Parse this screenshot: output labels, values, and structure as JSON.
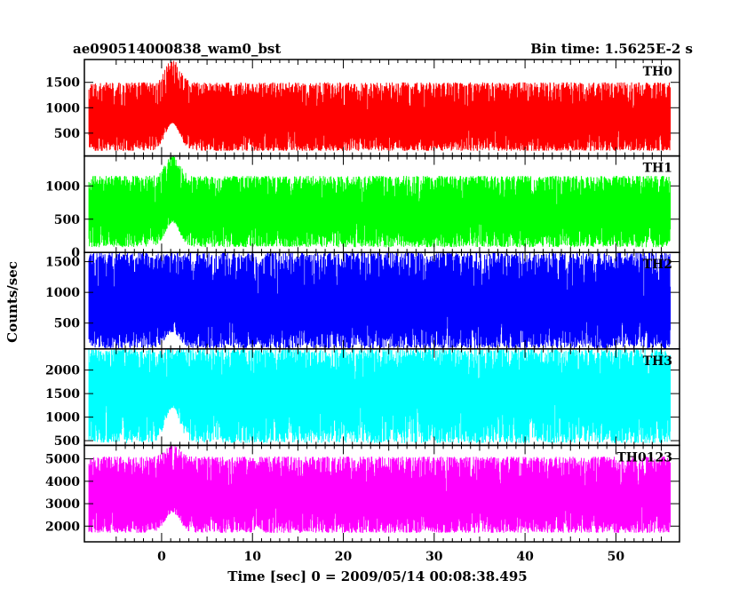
{
  "header": {
    "title": "ae090514000838_wam0_bst",
    "bin_time": "Bin time: 1.5625E-2 s"
  },
  "chart_data": {
    "type": "line",
    "xlabel": "Time [sec] 0 = 2009/05/14 00:08:38.495",
    "ylabel": "Counts/sec",
    "xlim": [
      -8.5,
      57
    ],
    "x_ticks": [
      0,
      10,
      20,
      30,
      40,
      50
    ],
    "x_range": [
      -8,
      56
    ],
    "burst_time": 1.2,
    "legend": "none",
    "grid": false,
    "panels": [
      {
        "name": "TH0",
        "color": "#ff0000",
        "ylim": [
          50,
          1950
        ],
        "yticks": [
          500,
          1000,
          1500
        ],
        "base": 700,
        "lo": 150,
        "hi": 1500,
        "burst_peak": 1950,
        "burst_floor": 700
      },
      {
        "name": "TH1",
        "color": "#00ff00",
        "ylim": [
          0,
          1450
        ],
        "yticks": [
          0,
          500,
          1000
        ],
        "base": 600,
        "lo": 80,
        "hi": 1150,
        "burst_peak": 1450,
        "burst_floor": 450
      },
      {
        "name": "TH2",
        "color": "#0000ff",
        "ylim": [
          80,
          1650
        ],
        "yticks": [
          500,
          1000,
          1500
        ],
        "base": 720,
        "lo": 90,
        "hi": 1650,
        "burst_peak": 1650,
        "burst_floor": 350
      },
      {
        "name": "TH3",
        "color": "#00ffff",
        "ylim": [
          400,
          2450
        ],
        "yticks": [
          500,
          1000,
          1500,
          2000
        ],
        "base": 1500,
        "lo": 450,
        "hi": 2450,
        "burst_peak": 2450,
        "burst_floor": 1200
      },
      {
        "name": "TH0123",
        "color": "#ff00ff",
        "ylim": [
          1300,
          5600
        ],
        "yticks": [
          2000,
          3000,
          4000,
          5000
        ],
        "base": 3200,
        "lo": 1700,
        "hi": 5100,
        "burst_peak": 5600,
        "burst_floor": 2600
      }
    ]
  }
}
